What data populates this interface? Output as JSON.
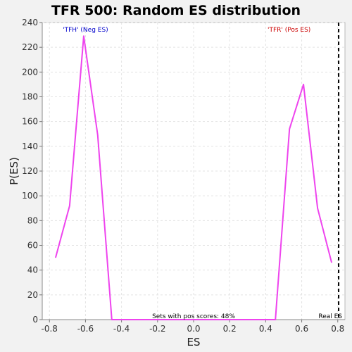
{
  "chart_data": {
    "type": "line",
    "title": "TFR 500: Random ES distribution",
    "xlabel": "ES",
    "ylabel": "P(ES)",
    "xlim": [
      -0.84,
      0.84
    ],
    "ylim": [
      0,
      240
    ],
    "xticks": [
      -0.8,
      -0.6,
      -0.4,
      -0.2,
      0.0,
      0.2,
      0.4,
      0.6,
      0.8
    ],
    "xtick_labels": [
      "-0.8",
      "-0.6",
      "-0.4",
      "-0.2",
      "0.0",
      "0.2",
      "0.4",
      "0.6",
      "0.8"
    ],
    "yticks": [
      0,
      20,
      40,
      60,
      80,
      100,
      120,
      140,
      160,
      180,
      200,
      220,
      240
    ],
    "ytick_labels": [
      "0",
      "20",
      "40",
      "60",
      "80",
      "100",
      "120",
      "140",
      "160",
      "180",
      "200",
      "220",
      "240"
    ],
    "grid": true,
    "series": [
      {
        "color": "#ee44ee",
        "x": [
          -0.766,
          -0.688,
          -0.61,
          -0.532,
          -0.454,
          -0.376,
          0.376,
          0.454,
          0.532,
          0.61,
          0.688,
          0.766
        ],
        "y": [
          50,
          92,
          229,
          149,
          0,
          0,
          0,
          0,
          154,
          190,
          90,
          46
        ]
      }
    ],
    "annotations": {
      "neg_label": "'TFH' (Neg ES)",
      "neg_label_color": "#0000cc",
      "pos_label": "'TFR' (Pos ES)",
      "pos_label_color": "#cc0000",
      "pos_scores": "Sets with pos scores: 48%",
      "real_es_label": "Real ES",
      "real_es_x": 0.805
    }
  }
}
